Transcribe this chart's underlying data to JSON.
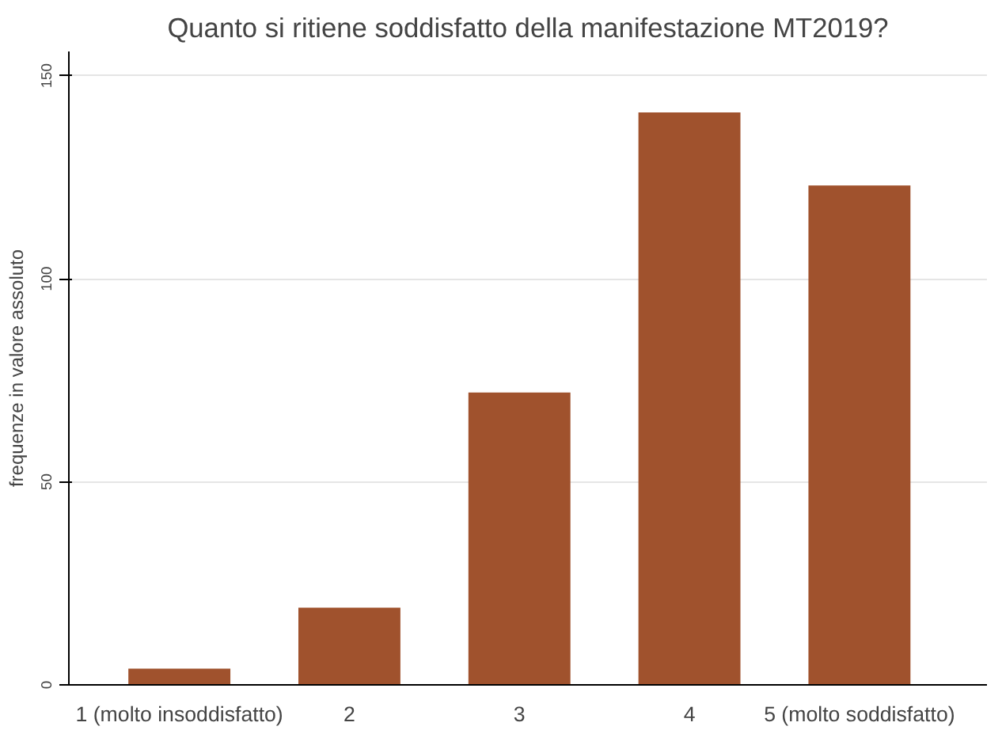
{
  "chart_data": {
    "type": "bar",
    "title": "Quanto si ritiene soddisfatto della manifestazione MT2019?",
    "ylabel": "frequenze in valore assoluto",
    "categories": [
      "1 (molto insoddisfatto)",
      "2",
      "3",
      "4",
      "5 (molto soddisfatto)"
    ],
    "values": [
      4,
      19,
      72,
      141,
      123
    ],
    "color": "#a0522d",
    "ylim": [
      0,
      156
    ],
    "yticks": [
      0,
      50,
      100,
      150
    ],
    "grid": "y"
  }
}
